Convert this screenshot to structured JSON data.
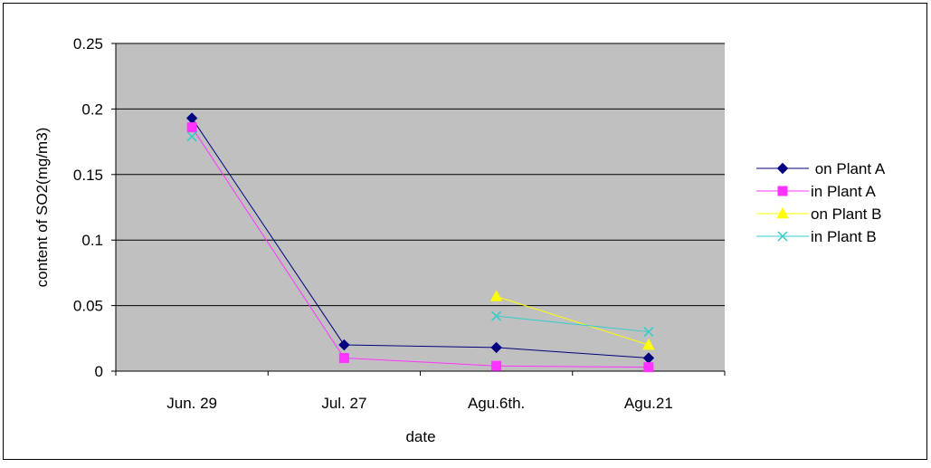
{
  "chart_data": {
    "type": "line",
    "title": "",
    "xlabel": "date",
    "ylabel": "content of SO2(mg/m3)",
    "ylim": [
      0,
      0.25
    ],
    "yticks": [
      0,
      0.05,
      0.1,
      0.15,
      0.2,
      0.25
    ],
    "ytick_labels": [
      "0",
      "0.05",
      "0.1",
      "0.15",
      "0.2",
      "0.25"
    ],
    "categories": [
      "Jun. 29",
      "Jul. 27",
      "Agu.6th.",
      "Agu.21"
    ],
    "grid": "horizontal",
    "legend_position": "right",
    "plot_background": "#c0c0c0",
    "series": [
      {
        "name": " on Plant A",
        "marker": "diamond",
        "color": "#000080",
        "values": [
          0.193,
          0.02,
          0.018,
          0.01
        ]
      },
      {
        "name": "in Plant A",
        "marker": "square",
        "color": "#ff33ff",
        "values": [
          0.186,
          0.01,
          0.004,
          0.003
        ]
      },
      {
        "name": "on Plant B",
        "marker": "triangle",
        "color": "#ffff00",
        "values": [
          null,
          null,
          0.057,
          0.02
        ]
      },
      {
        "name": "in Plant B",
        "marker": "x",
        "color": "#33cccc",
        "values": [
          0.179,
          null,
          0.042,
          0.03
        ]
      }
    ]
  }
}
